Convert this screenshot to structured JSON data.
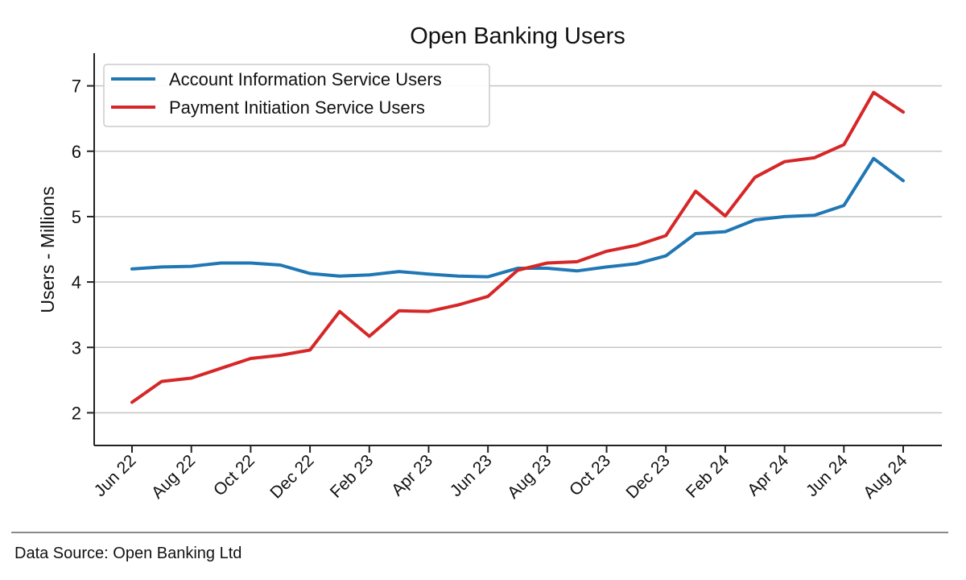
{
  "chart_data": {
    "type": "line",
    "title": "Open Banking Users",
    "xlabel": "",
    "ylabel": "Users - Millions",
    "ylim": [
      1.5,
      7.5
    ],
    "yticks": [
      2,
      3,
      4,
      5,
      6,
      7
    ],
    "grid": "horizontal",
    "legend_position": "top-left",
    "x": [
      "Jun 22",
      "Jul 22",
      "Aug 22",
      "Sep 22",
      "Oct 22",
      "Nov 22",
      "Dec 22",
      "Jan 23",
      "Feb 23",
      "Mar 23",
      "Apr 23",
      "May 23",
      "Jun 23",
      "Jul 23",
      "Aug 23",
      "Sep 23",
      "Oct 23",
      "Nov 23",
      "Dec 23",
      "Jan 24",
      "Feb 24",
      "Mar 24",
      "Apr 24",
      "May 24",
      "Jun 24",
      "Jul 24",
      "Aug 24"
    ],
    "xtick_labels": [
      "Jun 22",
      "Aug 22",
      "Oct 22",
      "Dec 22",
      "Feb 23",
      "Apr 23",
      "Jun 23",
      "Aug 23",
      "Oct 23",
      "Dec 23",
      "Feb 24",
      "Apr 24",
      "Jun 24",
      "Aug 24"
    ],
    "series": [
      {
        "name": "Account Information Service Users",
        "color": "#1f77b4",
        "values": [
          4.2,
          4.23,
          4.24,
          4.29,
          4.29,
          4.26,
          4.13,
          4.09,
          4.11,
          4.16,
          4.12,
          4.09,
          4.08,
          4.21,
          4.21,
          4.17,
          4.23,
          4.28,
          4.4,
          4.74,
          4.77,
          4.95,
          5.0,
          5.02,
          5.17,
          5.89,
          5.55
        ]
      },
      {
        "name": "Payment Initiation Service Users",
        "color": "#d62728",
        "values": [
          2.16,
          2.48,
          2.53,
          2.68,
          2.83,
          2.88,
          2.96,
          3.55,
          3.17,
          3.56,
          3.55,
          3.65,
          3.78,
          4.18,
          4.29,
          4.31,
          4.47,
          4.56,
          4.71,
          5.39,
          5.01,
          5.6,
          5.84,
          5.9,
          6.1,
          6.9,
          6.6
        ]
      }
    ]
  },
  "footer": {
    "source": "Data Source: Open Banking Ltd"
  }
}
